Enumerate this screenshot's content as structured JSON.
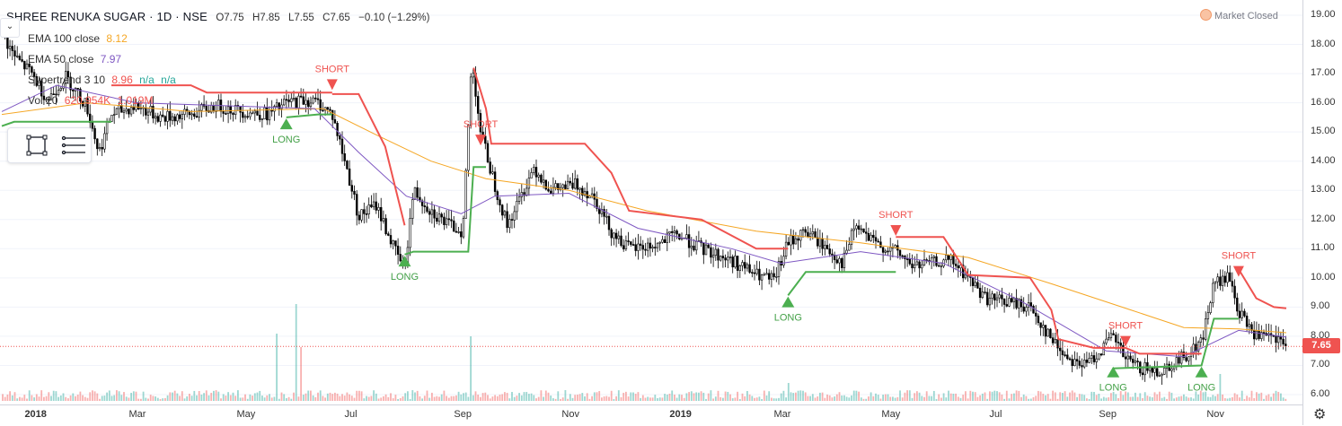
{
  "header": {
    "symbol": "SHREE RENUKA SUGAR · 1D · NSE",
    "open": "O7.75",
    "high": "H7.85",
    "low": "L7.55",
    "close": "C7.65",
    "change": "−0.10 (−1.29%)",
    "collapse_icon": "chevron-down-icon"
  },
  "indicators": {
    "ema100": {
      "label": "EMA 100 close",
      "value": "8.12",
      "color": "#f5a623"
    },
    "ema50": {
      "label": "EMA 50 close",
      "value": "7.97",
      "color": "#7e57c2"
    },
    "supertrend": {
      "label": "Supertrend 3 10",
      "value1": "8.96",
      "value2": "n/a",
      "value3": "n/a",
      "down_color": "#ef5350",
      "up_color": "#26a69a"
    },
    "volume": {
      "label": "Vol 20",
      "value1": "620.954K",
      "value2": "1.019M"
    }
  },
  "toolbox": {
    "icons": [
      "rectangle-select-icon",
      "lines-menu-icon"
    ]
  },
  "market_status": {
    "label": "Market Closed",
    "icon": "status-dot-icon"
  },
  "last_price": "7.65",
  "colors": {
    "up": "#26a69a",
    "down": "#ef5350",
    "candle_body": "#000000",
    "st_down": "#ef5350",
    "st_up": "#4caf50",
    "ema100": "#f5a623",
    "ema50": "#7e57c2"
  },
  "chart_data": {
    "type": "candlestick",
    "title": "SHREE RENUKA SUGAR · 1D · NSE",
    "y_axis": {
      "ticks": [
        "19.00",
        "18.00",
        "17.00",
        "16.00",
        "15.00",
        "14.00",
        "13.00",
        "12.00",
        "11.00",
        "10.00",
        "9.00",
        "8.00",
        "7.00",
        "6.00"
      ],
      "range": [
        5.8,
        19.3
      ]
    },
    "x_axis": {
      "ticks": [
        "2018",
        "Mar",
        "May",
        "Jul",
        "Sep",
        "Nov",
        "2019",
        "Mar",
        "May",
        "Jul",
        "Sep",
        "Nov"
      ]
    },
    "price_path": [
      [
        "2017-12-15",
        18.4
      ],
      [
        "2017-12-22",
        17.6
      ],
      [
        "2018-01-01",
        17.0
      ],
      [
        "2018-01-10",
        16.1
      ],
      [
        "2018-01-20",
        16.9
      ],
      [
        "2018-02-01",
        15.9
      ],
      [
        "2018-02-08",
        14.3
      ],
      [
        "2018-02-15",
        15.6
      ],
      [
        "2018-03-01",
        15.9
      ],
      [
        "2018-03-15",
        15.5
      ],
      [
        "2018-04-01",
        15.6
      ],
      [
        "2018-04-15",
        15.9
      ],
      [
        "2018-05-01",
        15.7
      ],
      [
        "2018-05-15",
        15.6
      ],
      [
        "2018-05-25",
        16.0
      ],
      [
        "2018-06-05",
        16.1
      ],
      [
        "2018-06-12",
        16.0
      ],
      [
        "2018-06-20",
        15.6
      ],
      [
        "2018-06-28",
        13.8
      ],
      [
        "2018-07-05",
        12.1
      ],
      [
        "2018-07-15",
        12.5
      ],
      [
        "2018-07-25",
        11.0
      ],
      [
        "2018-07-31",
        10.3
      ],
      [
        "2018-08-05",
        13.0
      ],
      [
        "2018-08-15",
        12.3
      ],
      [
        "2018-08-25",
        11.8
      ],
      [
        "2018-09-02",
        11.6
      ],
      [
        "2018-09-07",
        17.5
      ],
      [
        "2018-09-12",
        15.0
      ],
      [
        "2018-09-20",
        13.2
      ],
      [
        "2018-09-27",
        11.8
      ],
      [
        "2018-10-05",
        12.8
      ],
      [
        "2018-10-12",
        13.8
      ],
      [
        "2018-10-22",
        13.0
      ],
      [
        "2018-11-05",
        13.2
      ],
      [
        "2018-11-15",
        12.8
      ],
      [
        "2018-11-25",
        11.6
      ],
      [
        "2018-12-05",
        11.0
      ],
      [
        "2018-12-20",
        11.1
      ],
      [
        "2019-01-01",
        11.5
      ],
      [
        "2019-01-15",
        11.0
      ],
      [
        "2019-02-01",
        10.6
      ],
      [
        "2019-02-15",
        10.1
      ],
      [
        "2019-02-25",
        9.9
      ],
      [
        "2019-03-05",
        11.2
      ],
      [
        "2019-03-15",
        11.6
      ],
      [
        "2019-03-25",
        11.1
      ],
      [
        "2019-04-05",
        10.5
      ],
      [
        "2019-04-12",
        11.8
      ],
      [
        "2019-04-22",
        11.2
      ],
      [
        "2019-05-05",
        10.9
      ],
      [
        "2019-05-15",
        10.4
      ],
      [
        "2019-05-25",
        10.5
      ],
      [
        "2019-06-05",
        10.6
      ],
      [
        "2019-06-15",
        10.0
      ],
      [
        "2019-06-25",
        9.3
      ],
      [
        "2019-07-05",
        9.2
      ],
      [
        "2019-07-20",
        9.0
      ],
      [
        "2019-08-01",
        7.9
      ],
      [
        "2019-08-10",
        7.3
      ],
      [
        "2019-08-20",
        7.0
      ],
      [
        "2019-08-30",
        7.6
      ],
      [
        "2019-09-05",
        8.0
      ],
      [
        "2019-09-12",
        7.2
      ],
      [
        "2019-09-20",
        6.9
      ],
      [
        "2019-10-01",
        6.8
      ],
      [
        "2019-10-15",
        7.3
      ],
      [
        "2019-10-25",
        7.8
      ],
      [
        "2019-11-01",
        9.8
      ],
      [
        "2019-11-10",
        10.0
      ],
      [
        "2019-11-15",
        8.8
      ],
      [
        "2019-11-25",
        8.0
      ],
      [
        "2019-12-05",
        7.9
      ],
      [
        "2019-12-12",
        7.65
      ]
    ],
    "ema100": [
      [
        "2017-12-15",
        15.6
      ],
      [
        "2018-02-01",
        16.0
      ],
      [
        "2018-04-01",
        15.7
      ],
      [
        "2018-06-15",
        15.8
      ],
      [
        "2018-07-15",
        14.9
      ],
      [
        "2018-08-15",
        14.0
      ],
      [
        "2018-09-15",
        13.4
      ],
      [
        "2018-11-01",
        13.0
      ],
      [
        "2018-12-15",
        12.3
      ],
      [
        "2019-02-15",
        11.6
      ],
      [
        "2019-04-15",
        11.2
      ],
      [
        "2019-06-15",
        10.7
      ],
      [
        "2019-08-01",
        9.8
      ],
      [
        "2019-09-15",
        8.9
      ],
      [
        "2019-10-15",
        8.3
      ],
      [
        "2019-11-15",
        8.25
      ],
      [
        "2019-12-12",
        8.12
      ]
    ],
    "ema50": [
      [
        "2017-12-15",
        15.7
      ],
      [
        "2018-01-15",
        16.6
      ],
      [
        "2018-03-01",
        16.0
      ],
      [
        "2018-06-10",
        15.8
      ],
      [
        "2018-07-05",
        14.3
      ],
      [
        "2018-08-01",
        12.8
      ],
      [
        "2018-09-01",
        12.2
      ],
      [
        "2018-09-20",
        12.8
      ],
      [
        "2018-11-01",
        12.9
      ],
      [
        "2018-12-10",
        11.7
      ],
      [
        "2019-02-01",
        11.0
      ],
      [
        "2019-03-01",
        10.5
      ],
      [
        "2019-04-15",
        10.9
      ],
      [
        "2019-06-01",
        10.5
      ],
      [
        "2019-07-15",
        9.2
      ],
      [
        "2019-09-01",
        7.5
      ],
      [
        "2019-10-15",
        7.3
      ],
      [
        "2019-11-15",
        8.2
      ],
      [
        "2019-12-12",
        7.97
      ]
    ],
    "supertrend_down": [
      [
        [
          "2018-02-15",
          16.6
        ],
        [
          "2018-04-01",
          16.6
        ],
        [
          "2018-04-10",
          16.35
        ],
        [
          "2018-06-20",
          16.35
        ]
      ],
      [
        [
          "2018-06-20",
          16.3
        ],
        [
          "2018-07-05",
          16.3
        ],
        [
          "2018-07-20",
          14.5
        ],
        [
          "2018-07-31",
          11.8
        ]
      ],
      [
        [
          "2018-09-08",
          17.2
        ],
        [
          "2018-09-15",
          15.8
        ],
        [
          "2018-09-18",
          14.6
        ],
        [
          "2018-11-10",
          14.6
        ],
        [
          "2018-11-25",
          13.6
        ],
        [
          "2018-12-05",
          12.3
        ],
        [
          "2019-01-15",
          12.0
        ],
        [
          "2019-02-15",
          11.0
        ],
        [
          "2019-03-05",
          11.0
        ]
      ],
      [
        [
          "2019-05-05",
          11.4
        ],
        [
          "2019-06-01",
          11.4
        ],
        [
          "2019-06-15",
          10.1
        ],
        [
          "2019-07-20",
          10.0
        ],
        [
          "2019-08-01",
          8.9
        ],
        [
          "2019-08-05",
          7.9
        ],
        [
          "2019-08-25",
          7.6
        ],
        [
          "2019-09-12",
          7.6
        ],
        [
          "2019-09-20",
          7.4
        ],
        [
          "2019-10-25",
          7.4
        ]
      ],
      [
        [
          "2019-11-15",
          10.3
        ],
        [
          "2019-11-25",
          9.3
        ],
        [
          "2019-12-05",
          9.0
        ],
        [
          "2019-12-12",
          8.96
        ]
      ]
    ],
    "supertrend_up": [
      [
        [
          "2017-12-15",
          15.2
        ],
        [
          "2017-12-22",
          15.35
        ],
        [
          "2018-02-15",
          15.35
        ]
      ],
      [
        [
          "2018-05-25",
          15.5
        ],
        [
          "2018-06-12",
          15.6
        ],
        [
          "2018-06-20",
          15.6
        ]
      ],
      [
        [
          "2018-07-31",
          10.8
        ],
        [
          "2018-08-05",
          10.9
        ],
        [
          "2018-09-05",
          10.9
        ],
        [
          "2018-09-08",
          13.8
        ],
        [
          "2018-09-15",
          13.8
        ]
      ],
      [
        [
          "2019-03-05",
          9.4
        ],
        [
          "2019-03-15",
          10.2
        ],
        [
          "2019-05-05",
          10.2
        ]
      ],
      [
        [
          "2019-09-05",
          6.9
        ],
        [
          "2019-10-25",
          7.0
        ],
        [
          "2019-11-01",
          8.6
        ],
        [
          "2019-11-15",
          8.6
        ]
      ]
    ],
    "signals": [
      {
        "type": "SHORT",
        "date": "2018-06-20",
        "price": 16.5
      },
      {
        "type": "LONG",
        "date": "2018-05-25",
        "price": 15.4
      },
      {
        "type": "LONG",
        "date": "2018-07-31",
        "price": 10.7
      },
      {
        "type": "SHORT",
        "date": "2018-09-12",
        "price": 14.6
      },
      {
        "type": "LONG",
        "date": "2019-03-05",
        "price": 9.3
      },
      {
        "type": "SHORT",
        "date": "2019-05-05",
        "price": 11.5
      },
      {
        "type": "SHORT",
        "date": "2019-09-12",
        "price": 7.7
      },
      {
        "type": "LONG",
        "date": "2019-09-05",
        "price": 6.9
      },
      {
        "type": "LONG",
        "date": "2019-10-25",
        "price": 6.9
      },
      {
        "type": "SHORT",
        "date": "2019-11-15",
        "price": 10.1
      }
    ],
    "last_price": 7.65
  }
}
